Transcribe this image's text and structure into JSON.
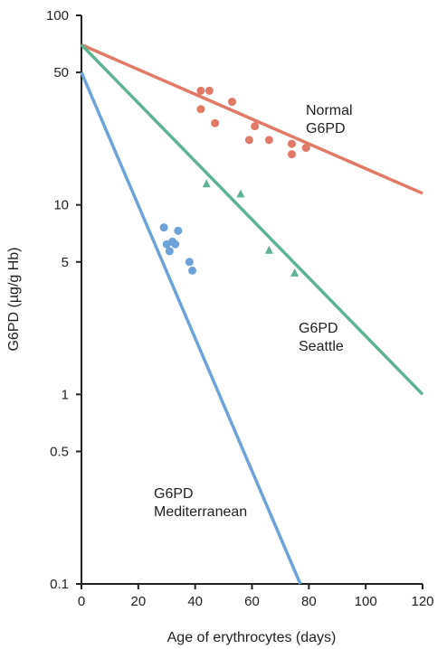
{
  "chart_data": {
    "type": "scatter",
    "xlabel": "Age of erythrocytes (days)",
    "ylabel": "G6PD (µg/g Hb)",
    "xlim": [
      0,
      120
    ],
    "ylim": [
      0.1,
      100
    ],
    "yscale": "log",
    "grid": false,
    "x_ticks": [
      0,
      20,
      40,
      60,
      80,
      100,
      120
    ],
    "y_ticks": [
      0.1,
      0.5,
      1,
      5,
      10,
      50,
      100
    ],
    "y_tick_labels": [
      "0.1",
      "0.5",
      "1",
      "5",
      "10",
      "50",
      "100"
    ],
    "series": [
      {
        "name": "Normal G6PD",
        "label_lines": [
          "Normal",
          "G6PD"
        ],
        "color": "#e07a66",
        "marker": "circle",
        "line": [
          [
            0,
            70
          ],
          [
            120,
            11.5
          ]
        ],
        "points": [
          [
            42,
            40
          ],
          [
            45,
            40
          ],
          [
            42,
            32
          ],
          [
            53,
            35
          ],
          [
            47,
            27
          ],
          [
            61,
            26
          ],
          [
            59,
            22
          ],
          [
            66,
            22
          ],
          [
            74,
            21
          ],
          [
            79,
            20
          ],
          [
            74,
            18.5
          ]
        ]
      },
      {
        "name": "G6PD Seattle",
        "label_lines": [
          "G6PD",
          "Seattle"
        ],
        "color": "#5fb393",
        "marker": "triangle",
        "line": [
          [
            0,
            70
          ],
          [
            120,
            1
          ]
        ],
        "points": [
          [
            44,
            13
          ],
          [
            56,
            11.5
          ],
          [
            66,
            5.8
          ],
          [
            75,
            4.4
          ]
        ]
      },
      {
        "name": "G6PD Mediterranean",
        "label_lines": [
          "G6PD",
          "Mediterranean"
        ],
        "color": "#6ea3d9",
        "marker": "circle",
        "line": [
          [
            0,
            50
          ],
          [
            77,
            0.1
          ]
        ],
        "points": [
          [
            29,
            7.6
          ],
          [
            33,
            6.2
          ],
          [
            32,
            6.4
          ],
          [
            30,
            6.2
          ],
          [
            31,
            5.7
          ],
          [
            34,
            7.3
          ],
          [
            38,
            5
          ],
          [
            39,
            4.5
          ]
        ]
      }
    ]
  }
}
